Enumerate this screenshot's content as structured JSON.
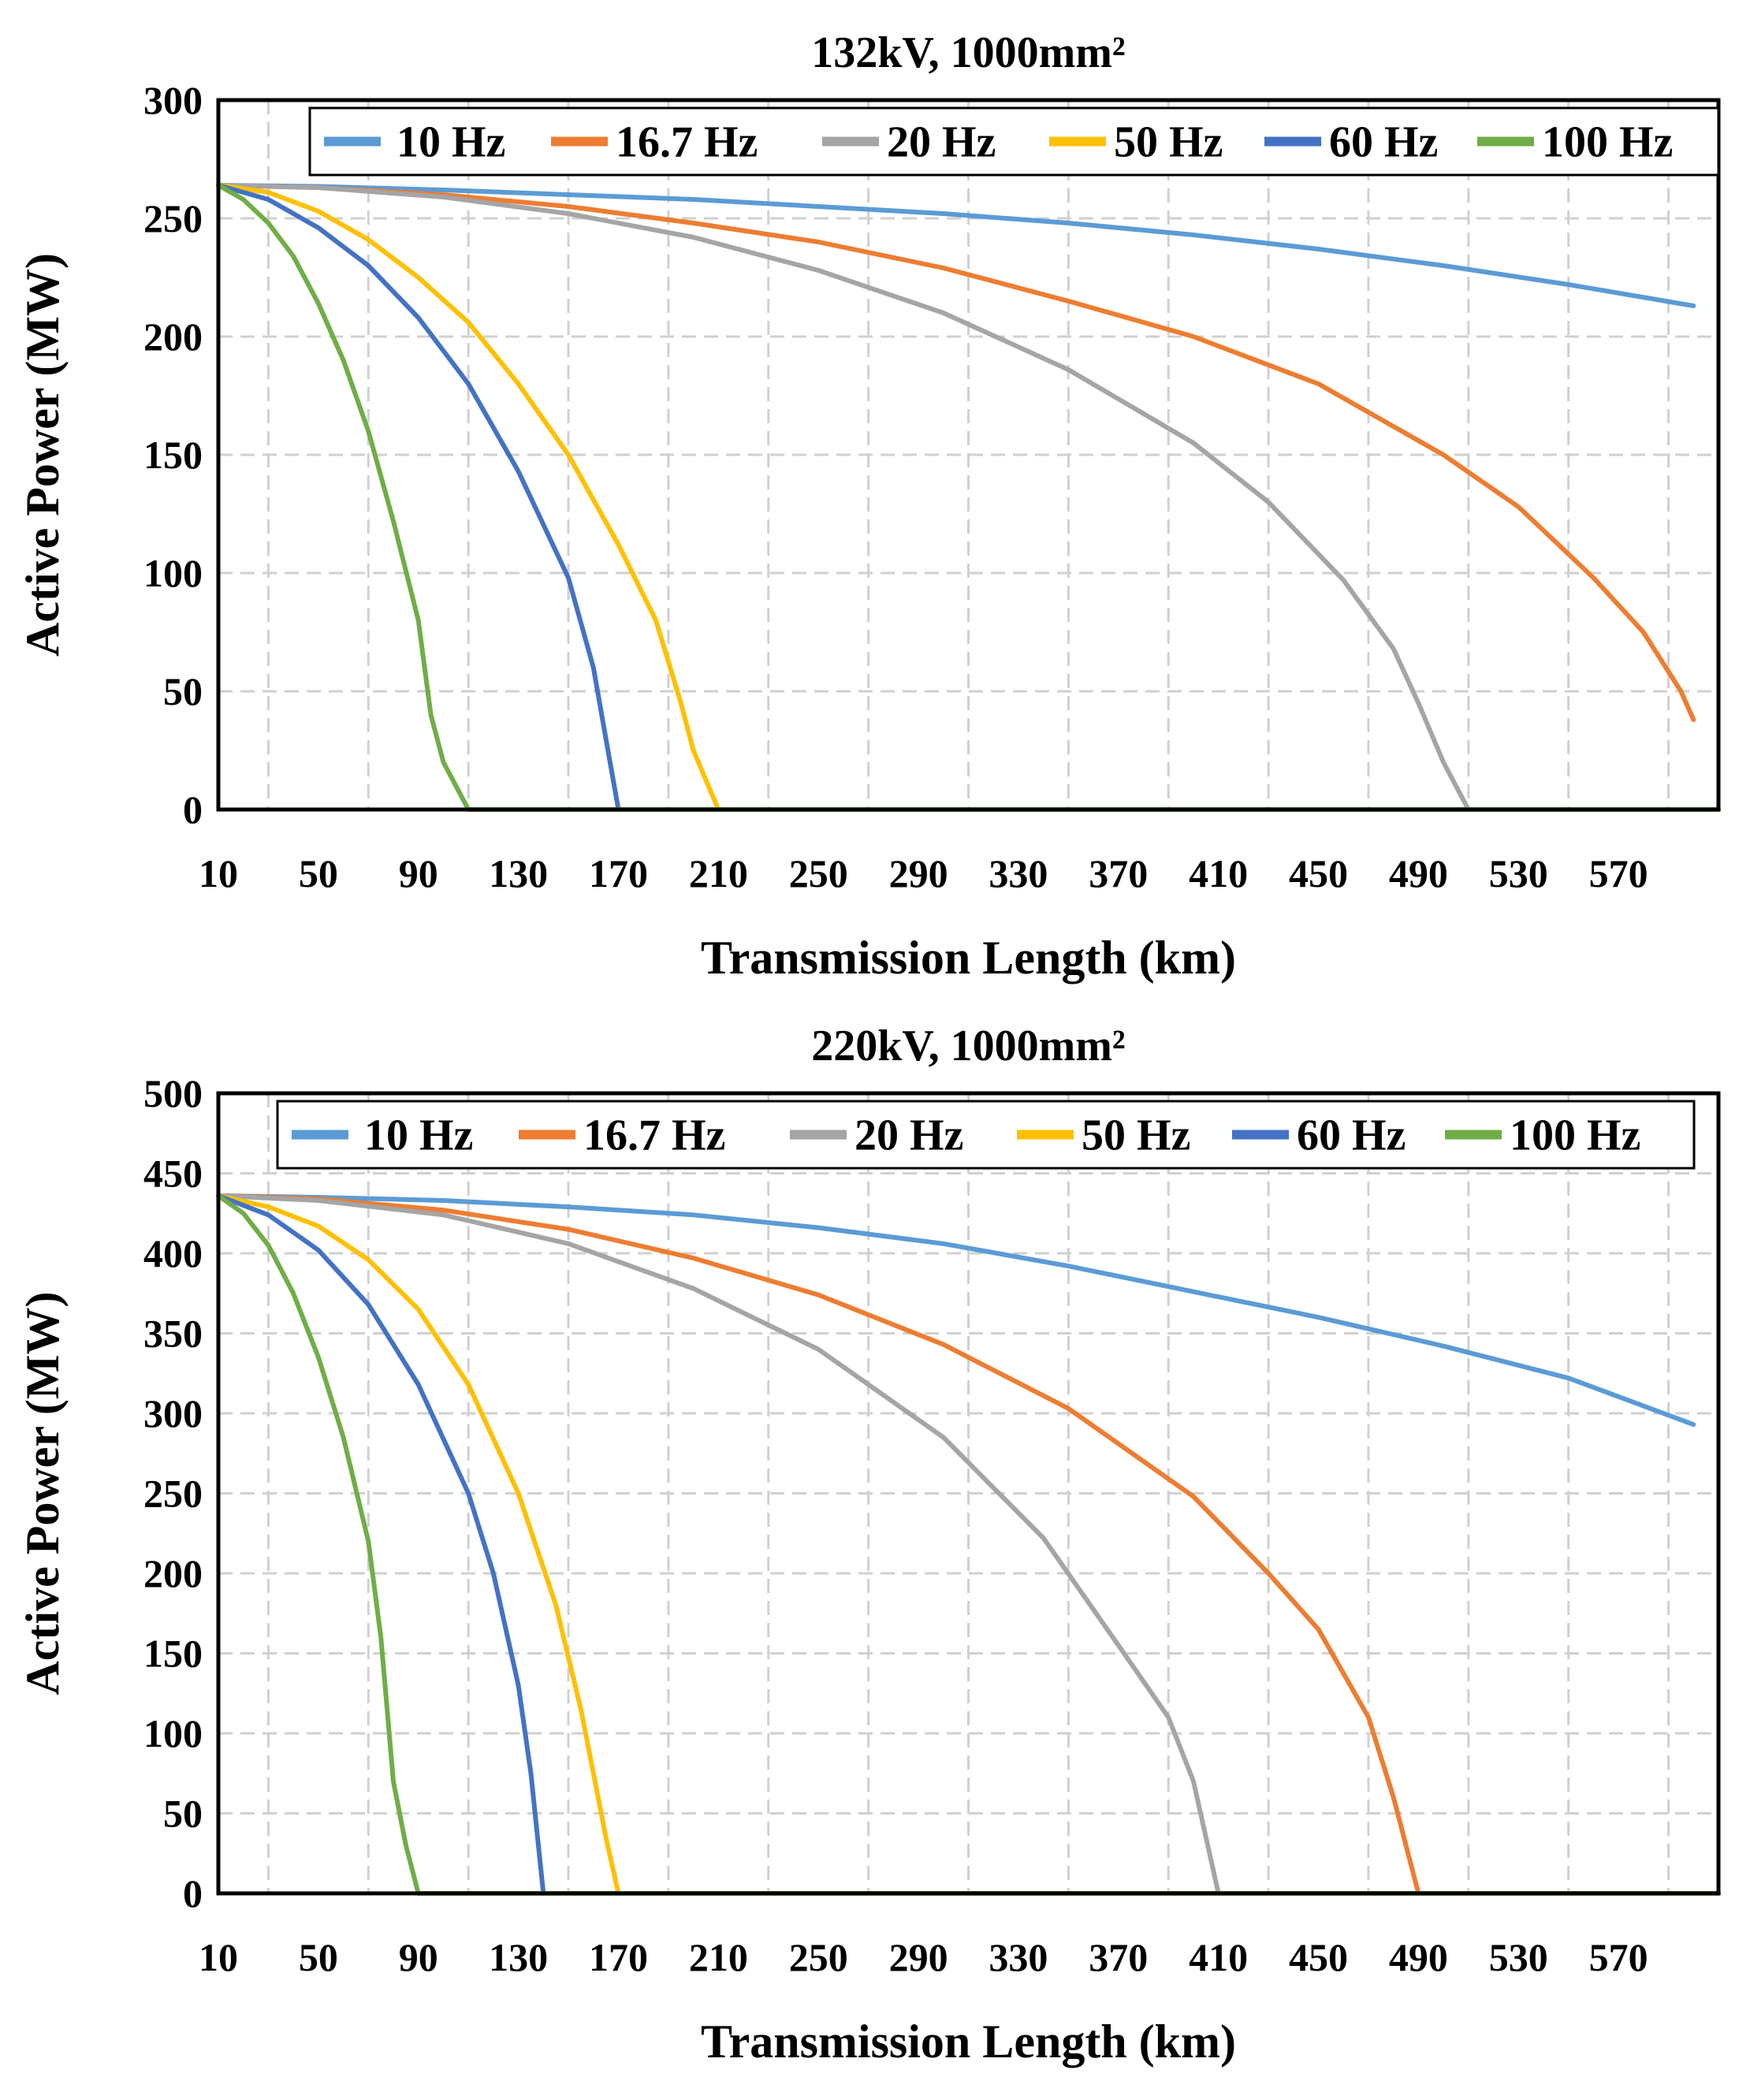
{
  "chart_data": [
    {
      "type": "line",
      "title": "132kV, 1000mm²",
      "xlabel": "Transmission Length (km)",
      "ylabel": "Active Power (MW)",
      "xlim": [
        10,
        610
      ],
      "ylim": [
        0,
        300
      ],
      "xticks": [
        "10",
        "50",
        "90",
        "130",
        "170",
        "210",
        "250",
        "290",
        "330",
        "370",
        "410",
        "450",
        "490",
        "530",
        "570"
      ],
      "yticks": [
        "0",
        "50",
        "100",
        "150",
        "200",
        "250",
        "300"
      ],
      "grid": true,
      "legend_position": "top",
      "series": [
        {
          "name": "10 Hz",
          "color": "#5B9BD5",
          "x": [
            10,
            50,
            100,
            150,
            200,
            250,
            300,
            350,
            400,
            450,
            500,
            550,
            600
          ],
          "y": [
            264,
            263.5,
            262,
            260,
            258,
            255,
            252,
            248,
            243,
            237,
            230,
            222,
            213
          ]
        },
        {
          "name": "16.7 Hz",
          "color": "#ED7D31",
          "x": [
            10,
            50,
            100,
            150,
            200,
            250,
            300,
            350,
            400,
            450,
            500,
            530,
            560,
            580,
            595,
            600
          ],
          "y": [
            264,
            263,
            260,
            255,
            248,
            240,
            229,
            215,
            200,
            180,
            150,
            128,
            98,
            75,
            50,
            38
          ]
        },
        {
          "name": "20 Hz",
          "color": "#A5A5A5",
          "x": [
            10,
            50,
            100,
            150,
            200,
            250,
            300,
            350,
            400,
            430,
            460,
            480,
            490,
            500,
            510
          ],
          "y": [
            264,
            263,
            259,
            252,
            242,
            228,
            210,
            186,
            155,
            130,
            97,
            68,
            45,
            20,
            0
          ]
        },
        {
          "name": "50 Hz",
          "color": "#FFC000",
          "x": [
            10,
            30,
            50,
            70,
            90,
            110,
            130,
            150,
            170,
            185,
            195,
            200,
            210
          ],
          "y": [
            264,
            261,
            253,
            241,
            225,
            206,
            180,
            150,
            112,
            80,
            45,
            25,
            0
          ]
        },
        {
          "name": "60 Hz",
          "color": "#4472C4",
          "x": [
            10,
            30,
            50,
            70,
            90,
            110,
            130,
            150,
            160,
            165,
            170
          ],
          "y": [
            264,
            258,
            246,
            230,
            208,
            180,
            143,
            98,
            60,
            30,
            0
          ]
        },
        {
          "name": "100 Hz",
          "color": "#70AD47",
          "x": [
            10,
            20,
            30,
            40,
            50,
            60,
            70,
            80,
            90,
            95,
            100,
            110
          ],
          "y": [
            264,
            258,
            248,
            234,
            214,
            190,
            160,
            122,
            80,
            40,
            20,
            0
          ]
        }
      ]
    },
    {
      "type": "line",
      "title": "220kV, 1000mm²",
      "xlabel": "Transmission Length (km)",
      "ylabel": "Active Power (MW)",
      "xlim": [
        10,
        610
      ],
      "ylim": [
        0,
        500
      ],
      "xticks": [
        "10",
        "50",
        "90",
        "130",
        "170",
        "210",
        "250",
        "290",
        "330",
        "370",
        "410",
        "450",
        "490",
        "530",
        "570"
      ],
      "yticks": [
        "0",
        "50",
        "100",
        "150",
        "200",
        "250",
        "300",
        "350",
        "400",
        "450",
        "500"
      ],
      "grid": true,
      "legend_position": "top",
      "series": [
        {
          "name": "10 Hz",
          "color": "#5B9BD5",
          "x": [
            10,
            50,
            100,
            150,
            200,
            250,
            300,
            350,
            400,
            450,
            500,
            550,
            600
          ],
          "y": [
            436,
            435,
            433,
            429,
            424,
            416,
            406,
            392,
            376,
            360,
            342,
            322,
            293
          ]
        },
        {
          "name": "16.7 Hz",
          "color": "#ED7D31",
          "x": [
            10,
            50,
            100,
            150,
            200,
            250,
            300,
            350,
            400,
            430,
            450,
            470,
            480,
            490
          ],
          "y": [
            436,
            434,
            427,
            415,
            397,
            374,
            343,
            303,
            248,
            200,
            165,
            110,
            60,
            0
          ]
        },
        {
          "name": "20 Hz",
          "color": "#A5A5A5",
          "x": [
            10,
            50,
            100,
            150,
            200,
            250,
            300,
            340,
            370,
            390,
            400,
            410
          ],
          "y": [
            436,
            433,
            424,
            406,
            378,
            340,
            285,
            222,
            155,
            110,
            70,
            0
          ]
        },
        {
          "name": "50 Hz",
          "color": "#FFC000",
          "x": [
            10,
            30,
            50,
            70,
            90,
            110,
            130,
            145,
            155,
            160,
            165,
            170
          ],
          "y": [
            436,
            429,
            417,
            396,
            365,
            318,
            250,
            180,
            115,
            75,
            35,
            0
          ]
        },
        {
          "name": "60 Hz",
          "color": "#4472C4",
          "x": [
            10,
            30,
            50,
            70,
            90,
            110,
            120,
            130,
            135,
            140
          ],
          "y": [
            436,
            424,
            402,
            368,
            318,
            250,
            200,
            130,
            75,
            0
          ]
        },
        {
          "name": "100 Hz",
          "color": "#70AD47",
          "x": [
            10,
            20,
            30,
            40,
            50,
            60,
            70,
            75,
            80,
            85,
            90
          ],
          "y": [
            436,
            425,
            405,
            375,
            335,
            285,
            220,
            160,
            70,
            30,
            0
          ]
        }
      ]
    }
  ]
}
